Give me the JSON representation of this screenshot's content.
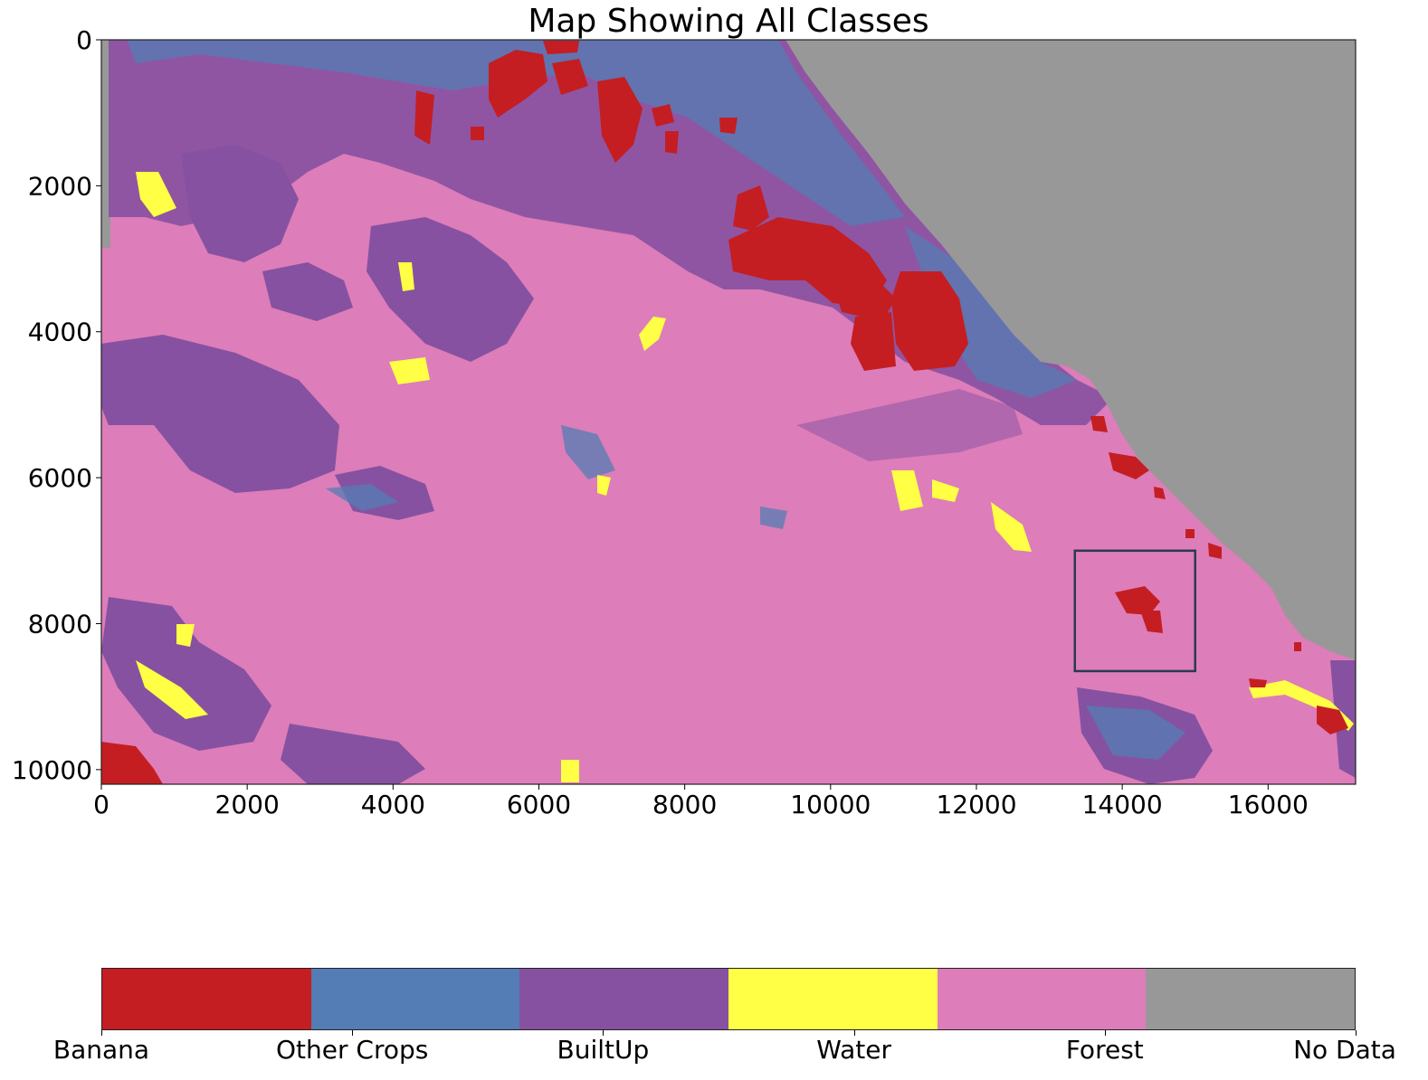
{
  "title": "Map Showing All Classes",
  "map": {
    "x_ticks": [
      "0",
      "2000",
      "4000",
      "6000",
      "8000",
      "10000",
      "12000",
      "14000",
      "16000"
    ],
    "y_ticks": [
      "0",
      "2000",
      "4000",
      "6000",
      "8000",
      "10000"
    ],
    "x_extent": [
      0,
      17200
    ],
    "y_extent": [
      0,
      10200
    ],
    "highlight_box": {
      "x0": 13350,
      "x1": 15000,
      "y0": 7000,
      "y1": 8650
    }
  },
  "legend": {
    "classes": [
      {
        "label": "Banana",
        "color": "#c41e22"
      },
      {
        "label": "Other Crops",
        "color": "#537db4"
      },
      {
        "label": "BuiltUp",
        "color": "#8651a1"
      },
      {
        "label": "Water",
        "color": "#ffff45"
      },
      {
        "label": "Forest",
        "color": "#dd7db9"
      },
      {
        "label": "No Data",
        "color": "#989898"
      }
    ]
  }
}
